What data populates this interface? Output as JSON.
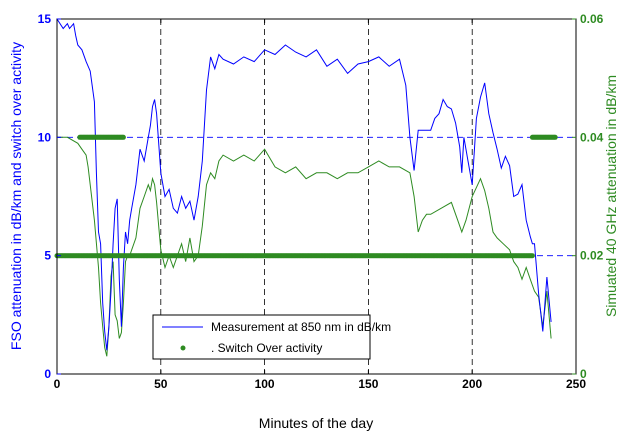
{
  "chart_data": {
    "type": "line",
    "xlabel": "Minutes of the day",
    "ylabel_left": "FSO attenuation in dB/km and switch over activity",
    "ylabel_right": "Simuated 40 GHz attenuation in dB/km",
    "xlim": [
      0,
      250
    ],
    "ylim_left": [
      0,
      15
    ],
    "ylim_right": [
      0,
      0.06
    ],
    "x_ticks": [
      "0",
      "50",
      "100",
      "150",
      "200",
      "250"
    ],
    "y_left_ticks": [
      "0",
      "5",
      "10",
      "15"
    ],
    "y_right_ticks": [
      "0",
      "0.02",
      "0.04",
      "0.06"
    ],
    "vertical_gridlines_at": [
      50,
      100,
      150,
      200
    ],
    "horizontal_gridlines_at_left": [
      5,
      10
    ],
    "grid_style": "dashed",
    "legend_position": "bottom-center",
    "colors": {
      "fso": "#0000ff",
      "sim": "#2e8b22",
      "switch": "#2e8b22",
      "left_axis": "#0000ff",
      "right_axis": "#2e8b22"
    },
    "series": [
      {
        "name": "Measurement at 850 nm in dB/km",
        "axis": "left",
        "style": "line",
        "x": [
          0,
          3,
          5,
          6,
          8,
          9,
          10,
          12,
          14,
          16,
          18,
          19,
          20,
          21,
          22,
          23,
          24,
          25,
          26,
          27,
          28,
          29,
          30,
          31,
          32,
          33,
          34,
          35,
          36,
          38,
          40,
          42,
          44,
          45,
          46,
          47,
          48,
          50,
          52,
          54,
          56,
          58,
          60,
          62,
          64,
          66,
          68,
          70,
          72,
          74,
          76,
          78,
          80,
          85,
          90,
          95,
          100,
          105,
          110,
          115,
          120,
          125,
          130,
          135,
          140,
          145,
          150,
          155,
          160,
          165,
          168,
          170,
          172,
          174,
          176,
          178,
          180,
          182,
          184,
          186,
          188,
          190,
          192,
          194,
          195,
          196,
          198,
          200,
          202,
          204,
          206,
          208,
          210,
          212,
          214,
          216,
          218,
          220,
          222,
          224,
          226,
          228,
          229,
          230,
          232,
          234,
          236,
          238
        ],
        "y": [
          15.0,
          14.6,
          14.8,
          14.6,
          14.8,
          14.3,
          13.9,
          13.7,
          13.2,
          12.8,
          11.5,
          8.5,
          6.0,
          5.5,
          3.0,
          1.8,
          1.0,
          2.0,
          3.5,
          5.5,
          7.0,
          7.4,
          4.0,
          2.0,
          4.5,
          6.0,
          5.5,
          6.5,
          7.0,
          8.0,
          9.5,
          9.0,
          10.0,
          10.5,
          11.3,
          11.6,
          11.0,
          8.5,
          7.5,
          7.8,
          7.0,
          6.8,
          7.5,
          7.0,
          7.3,
          6.5,
          7.5,
          9.0,
          12.0,
          13.4,
          12.9,
          13.5,
          13.3,
          13.1,
          13.4,
          13.2,
          13.7,
          13.5,
          13.9,
          13.6,
          13.4,
          13.7,
          13.0,
          13.3,
          12.7,
          13.1,
          13.2,
          13.4,
          13.0,
          13.3,
          12.2,
          10.0,
          8.6,
          10.3,
          10.3,
          10.3,
          10.3,
          10.8,
          11.0,
          11.6,
          11.3,
          11.2,
          10.6,
          9.6,
          8.5,
          10.0,
          9.0,
          8.0,
          10.8,
          11.7,
          12.3,
          11.0,
          10.2,
          9.5,
          8.7,
          9.2,
          8.8,
          7.5,
          7.6,
          8.0,
          6.5,
          5.8,
          5.5,
          5.5,
          3.4,
          1.8,
          4.1,
          2.2
        ]
      },
      {
        "name": "Simuated 40 GHz attenuation",
        "axis": "right",
        "style": "line",
        "x": [
          0,
          5,
          10,
          12,
          14,
          15,
          16,
          18,
          20,
          21,
          22,
          23,
          24,
          25,
          26,
          27,
          28,
          29,
          30,
          31,
          32,
          33,
          34,
          35,
          36,
          38,
          40,
          42,
          44,
          45,
          46,
          47,
          48,
          50,
          52,
          54,
          56,
          58,
          60,
          62,
          64,
          66,
          68,
          70,
          72,
          74,
          76,
          78,
          80,
          85,
          90,
          95,
          100,
          105,
          110,
          115,
          120,
          125,
          130,
          135,
          140,
          145,
          150,
          155,
          160,
          165,
          170,
          172,
          174,
          176,
          178,
          180,
          185,
          190,
          193,
          195,
          197,
          200,
          204,
          206,
          208,
          210,
          212,
          215,
          218,
          220,
          222,
          224,
          226,
          228,
          230,
          232,
          234,
          236,
          238
        ],
        "y": [
          0.04,
          0.04,
          0.039,
          0.038,
          0.037,
          0.035,
          0.032,
          0.026,
          0.018,
          0.012,
          0.008,
          0.0045,
          0.003,
          0.008,
          0.0165,
          0.019,
          0.01,
          0.009,
          0.006,
          0.007,
          0.012,
          0.019,
          0.02,
          0.02,
          0.021,
          0.023,
          0.028,
          0.03,
          0.032,
          0.031,
          0.033,
          0.032,
          0.029,
          0.021,
          0.018,
          0.02,
          0.018,
          0.02,
          0.022,
          0.019,
          0.023,
          0.019,
          0.02,
          0.025,
          0.032,
          0.034,
          0.033,
          0.036,
          0.037,
          0.036,
          0.037,
          0.036,
          0.038,
          0.035,
          0.034,
          0.035,
          0.033,
          0.034,
          0.034,
          0.033,
          0.034,
          0.034,
          0.035,
          0.036,
          0.035,
          0.035,
          0.034,
          0.03,
          0.024,
          0.026,
          0.027,
          0.027,
          0.028,
          0.029,
          0.026,
          0.024,
          0.026,
          0.03,
          0.033,
          0.031,
          0.028,
          0.024,
          0.023,
          0.022,
          0.021,
          0.019,
          0.018,
          0.016,
          0.018,
          0.016,
          0.014,
          0.013,
          0.008,
          0.014,
          0.006
        ]
      },
      {
        "name": ". Switch Over activity",
        "axis": "left",
        "style": "markers",
        "segments": [
          {
            "x_start": 0,
            "x_end": 229,
            "y": 5
          },
          {
            "x_start": 11,
            "x_end": 32,
            "y": 10
          },
          {
            "x_start": 229,
            "x_end": 240,
            "y": 10
          }
        ]
      }
    ]
  }
}
